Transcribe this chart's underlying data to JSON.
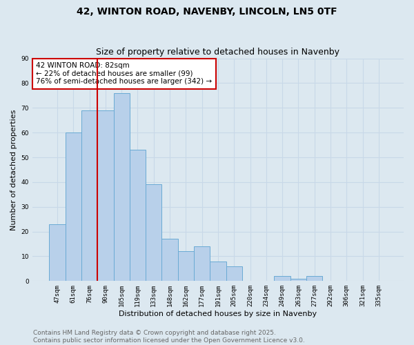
{
  "title": "42, WINTON ROAD, NAVENBY, LINCOLN, LN5 0TF",
  "subtitle": "Size of property relative to detached houses in Navenby",
  "xlabel": "Distribution of detached houses by size in Navenby",
  "ylabel": "Number of detached properties",
  "categories": [
    "47sqm",
    "61sqm",
    "76sqm",
    "90sqm",
    "105sqm",
    "119sqm",
    "133sqm",
    "148sqm",
    "162sqm",
    "177sqm",
    "191sqm",
    "205sqm",
    "220sqm",
    "234sqm",
    "249sqm",
    "263sqm",
    "277sqm",
    "292sqm",
    "306sqm",
    "321sqm",
    "335sqm"
  ],
  "values": [
    23,
    60,
    69,
    69,
    76,
    53,
    39,
    17,
    12,
    14,
    8,
    6,
    0,
    0,
    2,
    1,
    2,
    0,
    0,
    0,
    0
  ],
  "bar_color": "#b8d0ea",
  "bar_edge_color": "#6aaad4",
  "vline_color": "#cc0000",
  "vline_x_index": 2,
  "annotation_text": "42 WINTON ROAD: 82sqm\n← 22% of detached houses are smaller (99)\n76% of semi-detached houses are larger (342) →",
  "annotation_box_color": "#ffffff",
  "annotation_box_edge_color": "#cc0000",
  "ylim": [
    0,
    90
  ],
  "yticks": [
    0,
    10,
    20,
    30,
    40,
    50,
    60,
    70,
    80,
    90
  ],
  "grid_color": "#c8d8e8",
  "background_color": "#dce8f0",
  "footer_text": "Contains HM Land Registry data © Crown copyright and database right 2025.\nContains public sector information licensed under the Open Government Licence v3.0.",
  "title_fontsize": 10,
  "subtitle_fontsize": 9,
  "xlabel_fontsize": 8,
  "ylabel_fontsize": 8,
  "tick_fontsize": 6.5,
  "annotation_fontsize": 7.5,
  "footer_fontsize": 6.5
}
